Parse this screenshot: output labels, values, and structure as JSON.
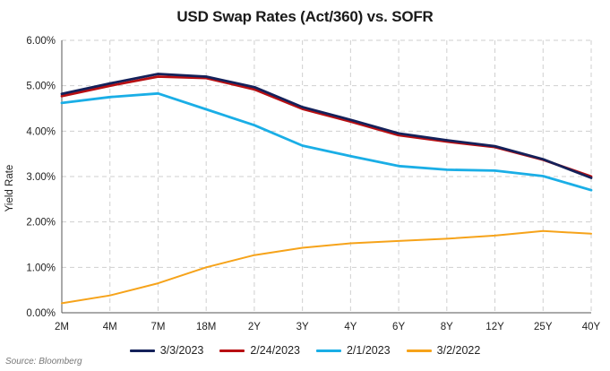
{
  "chart_data": {
    "type": "line",
    "title": "USD Swap Rates (Act/360) vs. SOFR",
    "ylabel": "Yield Rate",
    "xlabel": "",
    "categories": [
      "2M",
      "4M",
      "7M",
      "18M",
      "2Y",
      "3Y",
      "4Y",
      "6Y",
      "8Y",
      "12Y",
      "25Y",
      "40Y"
    ],
    "ylim": [
      0,
      6
    ],
    "yticks": [
      "0.00%",
      "1.00%",
      "2.00%",
      "3.00%",
      "4.00%",
      "5.00%",
      "6.00%"
    ],
    "grid": true,
    "legend_position": "bottom",
    "series": [
      {
        "name": "3/3/2023",
        "color": "#14215a",
        "values": [
          4.82,
          5.05,
          5.26,
          5.2,
          4.97,
          4.53,
          4.25,
          3.95,
          3.8,
          3.67,
          3.38,
          2.97
        ]
      },
      {
        "name": "2/24/2023",
        "color": "#b80f12",
        "values": [
          4.77,
          5.0,
          5.2,
          5.17,
          4.92,
          4.49,
          4.21,
          3.91,
          3.77,
          3.65,
          3.37,
          3.0
        ]
      },
      {
        "name": "2/1/2023",
        "color": "#1aaee6",
        "values": [
          4.62,
          4.75,
          4.83,
          4.48,
          4.13,
          3.68,
          3.45,
          3.23,
          3.15,
          3.13,
          3.01,
          2.7
        ]
      },
      {
        "name": "3/2/2022",
        "color": "#f6a31a",
        "values": [
          0.21,
          0.38,
          0.65,
          1.0,
          1.27,
          1.43,
          1.53,
          1.58,
          1.63,
          1.7,
          1.8,
          1.74
        ]
      }
    ]
  },
  "source": "Source: Bloomberg"
}
